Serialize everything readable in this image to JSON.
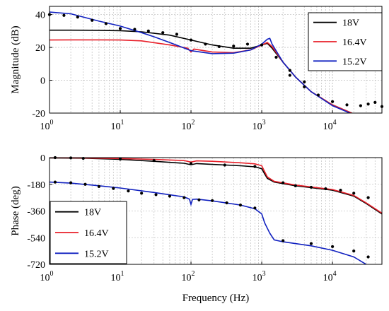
{
  "chart_data": [
    {
      "type": "line",
      "xlabel": "",
      "ylabel": "Magnitude (dB)",
      "xscale": "log",
      "xlim": [
        1,
        50000
      ],
      "ylim": [
        -20,
        45
      ],
      "yticks": [
        "40",
        "20",
        "0",
        "-20"
      ],
      "xticks": [
        {
          "base": "10",
          "exp": "0"
        },
        {
          "base": "10",
          "exp": "1"
        },
        {
          "base": "10",
          "exp": "2"
        },
        {
          "base": "10",
          "exp": "3"
        },
        {
          "base": "10",
          "exp": "4"
        }
      ],
      "grid": true,
      "legend": "top-right",
      "series": [
        {
          "name": "18V",
          "color": "#000000",
          "x": [
            1,
            2,
            5,
            10,
            20,
            50,
            100,
            200,
            400,
            700,
            1000,
            1200,
            1400,
            2000,
            3000,
            5000,
            10000,
            20000
          ],
          "y": [
            30.5,
            30.5,
            30.4,
            30.2,
            29.5,
            27.5,
            24.5,
            21.5,
            19.5,
            19.5,
            21.5,
            22.5,
            19.5,
            11,
            2,
            -7,
            -15,
            -20.5
          ]
        },
        {
          "name": "16.4V",
          "color": "#e8202a",
          "x": [
            1,
            2,
            5,
            10,
            20,
            50,
            90,
            100,
            110,
            200,
            400,
            700,
            1000,
            1200,
            1400,
            2000,
            3000,
            5000,
            10000,
            20000
          ],
          "y": [
            24.5,
            24.6,
            24.6,
            24.5,
            24,
            21.5,
            19.5,
            17.2,
            19,
            17.2,
            16.8,
            18.5,
            21.5,
            23,
            20.5,
            11,
            2,
            -7,
            -15,
            -20.5
          ]
        },
        {
          "name": "15.2V",
          "color": "#1020c0",
          "x": [
            1,
            2,
            5,
            10,
            20,
            30,
            50,
            100,
            200,
            400,
            700,
            1000,
            1200,
            1300,
            1400,
            2000,
            3000,
            5000,
            10000,
            20000
          ],
          "y": [
            41.5,
            40.5,
            36,
            33,
            29,
            26.5,
            23,
            18,
            16.2,
            16.5,
            18.5,
            22,
            25,
            25.5,
            22,
            11,
            2,
            -7,
            -15.5,
            -21
          ]
        }
      ],
      "markers": {
        "color": "#000000",
        "x": [
          1,
          1.6,
          2.5,
          4,
          6.3,
          10,
          16,
          25,
          40,
          63,
          100,
          160,
          250,
          400,
          630,
          1000,
          1600,
          2500,
          4000,
          6300,
          10000,
          16000,
          25000,
          32000,
          40000,
          50000,
          2500,
          4000
        ],
        "y": [
          40,
          39.5,
          38.5,
          36.5,
          34.5,
          31.5,
          31,
          30,
          29,
          28,
          24.5,
          22,
          20.5,
          20.8,
          22,
          21.5,
          14,
          3,
          -4,
          -9,
          -13,
          -15,
          -15.5,
          -14.5,
          -13.5,
          -16,
          6,
          -1
        ]
      }
    },
    {
      "type": "line",
      "xlabel": "Frequency (Hz)",
      "ylabel": "Phase (deg)",
      "xscale": "log",
      "xlim": [
        1,
        50000
      ],
      "ylim": [
        -720,
        0
      ],
      "yticks": [
        "0",
        "-180",
        "-360",
        "-540",
        "-720"
      ],
      "xticks": [
        {
          "base": "10",
          "exp": "0"
        },
        {
          "base": "10",
          "exp": "1"
        },
        {
          "base": "10",
          "exp": "2"
        },
        {
          "base": "10",
          "exp": "3"
        },
        {
          "base": "10",
          "exp": "4"
        }
      ],
      "grid": true,
      "legend": "bottom-left",
      "series": [
        {
          "name": "18V",
          "color": "#000000",
          "x": [
            1,
            3,
            10,
            30,
            80,
            100,
            120,
            200,
            500,
            800,
            1000,
            1100,
            1200,
            1500,
            3000,
            10000,
            20000,
            30000,
            50000
          ],
          "y": [
            -2,
            -4,
            -12,
            -25,
            -38,
            -48,
            -40,
            -46,
            -55,
            -62,
            -75,
            -110,
            -140,
            -165,
            -190,
            -220,
            -260,
            -310,
            -380
          ]
        },
        {
          "name": "16.4V",
          "color": "#e8202a",
          "x": [
            1,
            3,
            10,
            30,
            80,
            100,
            120,
            200,
            500,
            800,
            1000,
            1100,
            1200,
            1500,
            3000,
            10000,
            20000,
            30000,
            50000
          ],
          "y": [
            0,
            -2,
            -6,
            -12,
            -20,
            -30,
            -22,
            -25,
            -35,
            -42,
            -55,
            -95,
            -130,
            -160,
            -185,
            -215,
            -255,
            -305,
            -375
          ]
        },
        {
          "name": "15.2V",
          "color": "#1020c0",
          "x": [
            1,
            2,
            5,
            10,
            30,
            80,
            95,
            100,
            105,
            120,
            200,
            500,
            800,
            1000,
            1100,
            1300,
            1500,
            2000,
            5000,
            10000,
            20000,
            30000
          ],
          "y": [
            -165,
            -172,
            -190,
            -205,
            -235,
            -265,
            -280,
            -315,
            -282,
            -280,
            -292,
            -320,
            -345,
            -380,
            -440,
            -510,
            -555,
            -568,
            -595,
            -625,
            -670,
            -720
          ]
        }
      ],
      "markers": {
        "color": "#000000",
        "x": [
          1.2,
          2,
          3.2,
          5,
          8,
          13,
          20,
          32,
          50,
          80,
          130,
          200,
          320,
          500,
          800,
          1.2,
          2,
          3,
          10,
          30,
          100,
          300,
          800,
          2000,
          3000,
          5000,
          8000,
          13000,
          20000,
          32000,
          2000,
          5000,
          10000,
          20000,
          32000
        ],
        "y": [
          -165,
          -170,
          -180,
          -195,
          -208,
          -225,
          -240,
          -250,
          -260,
          -270,
          -285,
          -290,
          -305,
          -320,
          -340,
          0,
          -2,
          -5,
          -10,
          -20,
          -40,
          -50,
          -60,
          -170,
          -190,
          -200,
          -210,
          -220,
          -240,
          -270,
          -560,
          -580,
          -600,
          -630,
          -670
        ]
      }
    }
  ]
}
